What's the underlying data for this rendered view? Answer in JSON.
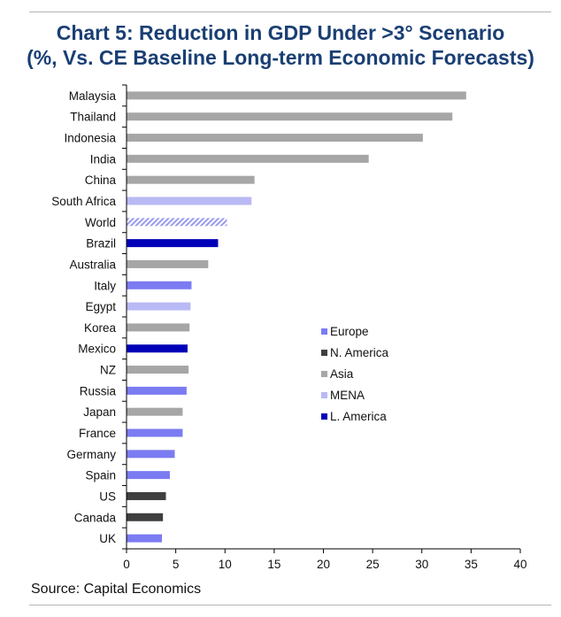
{
  "title_line1": "Chart 5: Reduction in GDP Under >3° Scenario",
  "title_line2": "(%, Vs. CE Baseline Long-term Economic Forecasts)",
  "source": "Source: Capital Economics",
  "colors": {
    "Europe": "#7b7bf2",
    "N. America": "#3f3f3f",
    "Asia": "#a6a6a6",
    "MENA": "#b9b9f5",
    "L. America": "#0000b8",
    "World": "#9a9aee"
  },
  "chart_data": {
    "type": "bar",
    "orientation": "horizontal",
    "title": "Chart 5: Reduction in GDP Under >3° Scenario (%, Vs. CE Baseline Long-term Economic Forecasts)",
    "categories": [
      "Malaysia",
      "Thailand",
      "Indonesia",
      "India",
      "China",
      "South Africa",
      "World",
      "Brazil",
      "Australia",
      "Italy",
      "Egypt",
      "Korea",
      "Mexico",
      "NZ",
      "Russia",
      "Japan",
      "France",
      "Germany",
      "Spain",
      "US",
      "Canada",
      "UK"
    ],
    "values": [
      34.5,
      33.1,
      30.1,
      24.6,
      13.0,
      12.7,
      10.2,
      9.3,
      8.3,
      6.6,
      6.5,
      6.4,
      6.2,
      6.3,
      6.1,
      5.7,
      5.7,
      4.9,
      4.4,
      4.0,
      3.7,
      3.6
    ],
    "groups": [
      "Asia",
      "Asia",
      "Asia",
      "Asia",
      "Asia",
      "MENA",
      "World",
      "L. America",
      "Asia",
      "Europe",
      "MENA",
      "Asia",
      "L. America",
      "Asia",
      "Europe",
      "Asia",
      "Europe",
      "Europe",
      "Europe",
      "N. America",
      "N. America",
      "Europe"
    ],
    "legend": [
      "Europe",
      "N. America",
      "Asia",
      "MENA",
      "L. America"
    ],
    "legend_position": "center-right",
    "xlim": [
      0,
      40
    ],
    "xticks": [
      0,
      5,
      10,
      15,
      20,
      25,
      30,
      35,
      40
    ],
    "grid": false
  }
}
